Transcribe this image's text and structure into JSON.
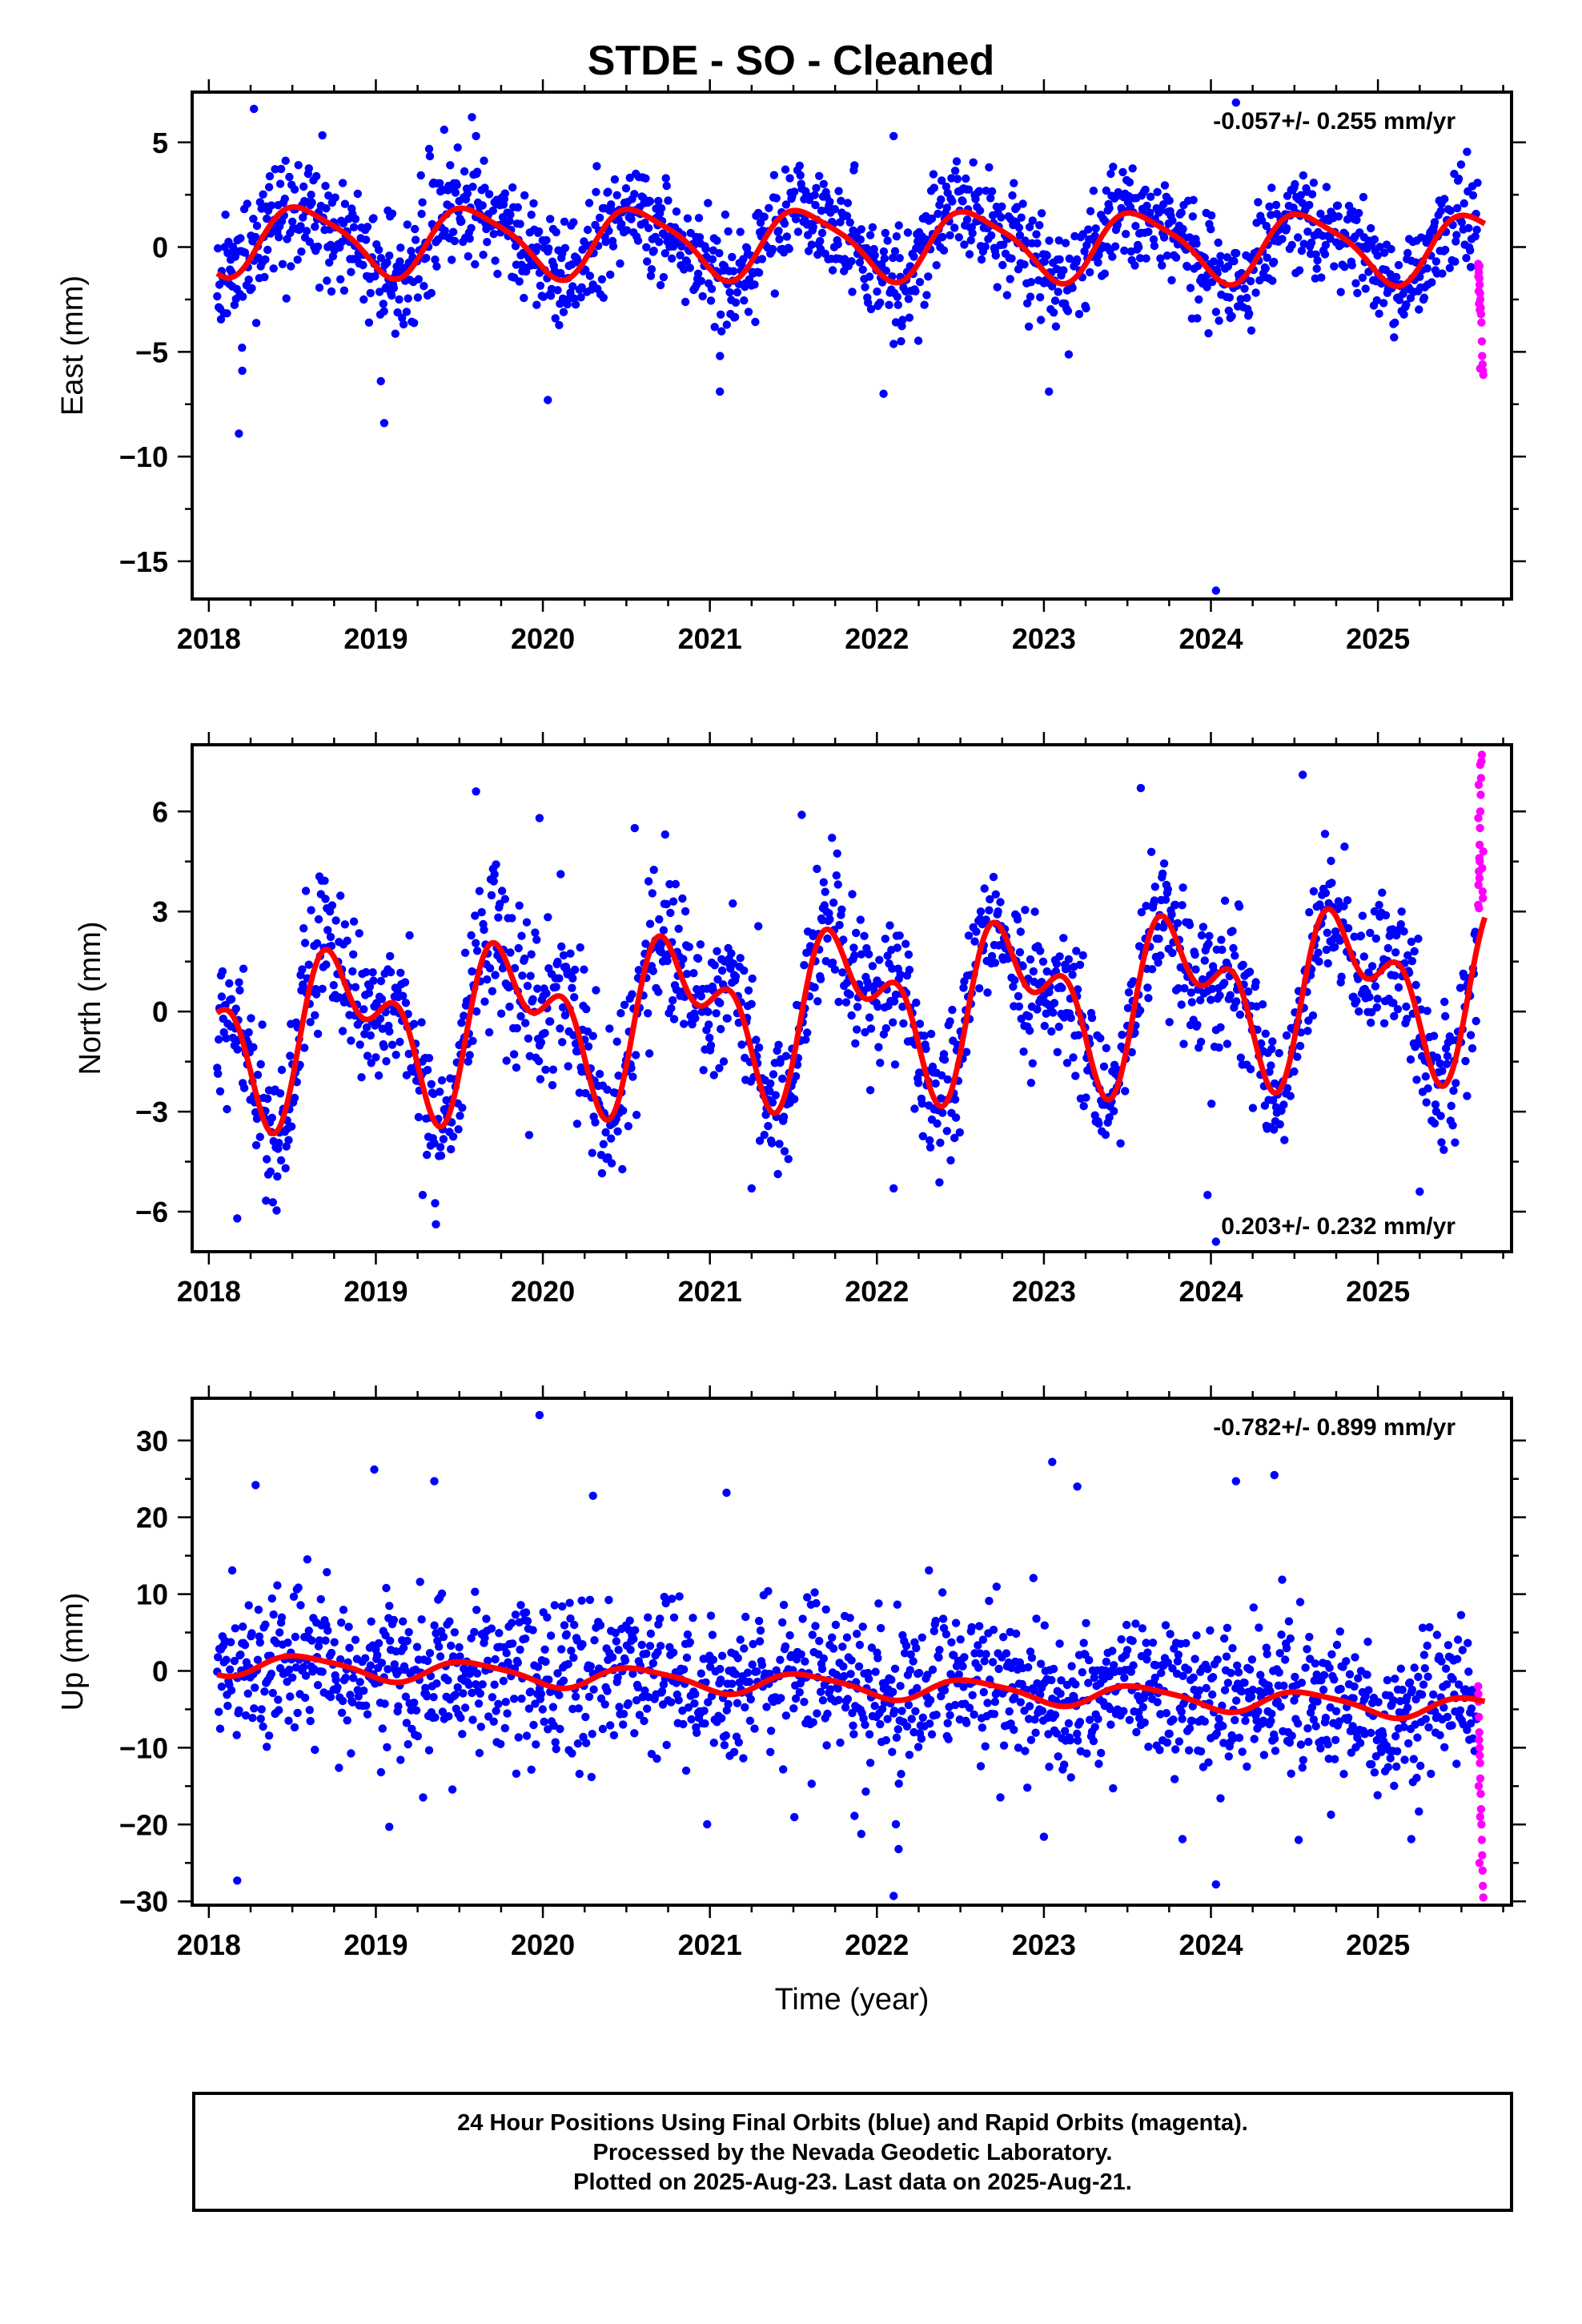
{
  "title": "STDE  - SO - Cleaned",
  "colors": {
    "final": "#0000ff",
    "rapid": "#ff00ff",
    "model": "#ff0000",
    "axis": "#000000"
  },
  "chart_data": [
    {
      "type": "scatter",
      "ylabel": "East (mm)",
      "xlabel": "",
      "rate_text": "-0.057+/- 0.255 mm/yr",
      "rate_position": "top-right",
      "xlim": [
        2017.9,
        2025.8
      ],
      "ylim": [
        -16.8,
        7.4
      ],
      "xticks": [
        2018,
        2019,
        2020,
        2021,
        2022,
        2023,
        2024,
        2025
      ],
      "yticks": [
        5,
        0,
        -5,
        -10,
        -15
      ],
      "series": [
        {
          "kind": "final",
          "start": 2018.05,
          "end": 2025.6,
          "step": 0.0045,
          "trend": -0.057,
          "offset": 0.4,
          "annual": 1.6,
          "semi": 0.35,
          "phase": 0.33,
          "noise": 1.25,
          "seed": 11
        },
        {
          "kind": "rapid",
          "start": 2025.6,
          "end": 2025.645,
          "step": 0.0022,
          "values": [
            -0.8,
            -1.0,
            -1.2,
            -1.5,
            -1.8,
            -2.2,
            -2.5,
            -2.9,
            -3.2,
            -3.6,
            -4.5,
            -5.2,
            -5.6,
            -5.9,
            -6.1,
            -1.4,
            -2.1,
            -2.7,
            -0.9,
            -3.0,
            -5.8
          ]
        },
        {
          "kind": "model",
          "start": 2018.05,
          "end": 2025.64,
          "step": 0.01,
          "trend": -0.057,
          "offset": 0.4,
          "annual": 1.6,
          "semi": 0.35,
          "phase": 0.33
        }
      ],
      "outliers": [
        [
          2018.18,
          -8.9
        ],
        [
          2018.2,
          -5.9
        ],
        [
          2019.03,
          -6.4
        ],
        [
          2019.05,
          -8.4
        ],
        [
          2020.03,
          -7.3
        ],
        [
          2024.03,
          -16.4
        ],
        [
          2018.27,
          6.6
        ],
        [
          2024.15,
          6.9
        ],
        [
          2022.1,
          5.3
        ],
        [
          2019.6,
          5.3
        ],
        [
          2021.06,
          -6.9
        ],
        [
          2022.04,
          -7.0
        ],
        [
          2023.03,
          -6.9
        ]
      ]
    },
    {
      "type": "scatter",
      "ylabel": "North (mm)",
      "xlabel": "",
      "rate_text": "0.203+/- 0.232 mm/yr",
      "rate_position": "bottom-right",
      "xlim": [
        2017.9,
        2025.8
      ],
      "ylim": [
        -7.2,
        8.0
      ],
      "xticks": [
        2018,
        2019,
        2020,
        2021,
        2022,
        2023,
        2024,
        2025
      ],
      "yticks": [
        6,
        3,
        0,
        -3,
        -6
      ],
      "series": [
        {
          "kind": "final",
          "start": 2018.05,
          "end": 2025.6,
          "step": 0.0045,
          "trend": 0.203,
          "offset": -0.7,
          "annual": 1.9,
          "semi": 1.3,
          "phase": 0.58,
          "noise": 1.05,
          "seed": 23
        },
        {
          "kind": "rapid",
          "start": 2025.6,
          "end": 2025.645,
          "step": 0.0022,
          "values": [
            3.2,
            3.8,
            4.2,
            4.6,
            5.0,
            5.5,
            6.0,
            6.5,
            7.0,
            7.5,
            7.7,
            4.3,
            3.6,
            3.4,
            4.8,
            5.8,
            6.8,
            3.1,
            4.0,
            4.5,
            7.4
          ]
        },
        {
          "kind": "model",
          "start": 2018.05,
          "end": 2025.64,
          "step": 0.01,
          "trend": 0.203,
          "offset": -0.7,
          "annual": 1.9,
          "semi": 1.3,
          "phase": 0.58
        }
      ],
      "outliers": [
        [
          2018.17,
          -6.2
        ],
        [
          2019.6,
          6.6
        ],
        [
          2019.98,
          5.8
        ],
        [
          2020.55,
          5.5
        ],
        [
          2021.55,
          5.9
        ],
        [
          2023.58,
          6.7
        ],
        [
          2024.55,
          7.1
        ],
        [
          2024.03,
          -6.9
        ],
        [
          2023.98,
          -5.5
        ],
        [
          2021.25,
          -5.3
        ],
        [
          2022.1,
          -5.3
        ],
        [
          2019.28,
          -5.5
        ],
        [
          2025.25,
          -5.4
        ]
      ]
    },
    {
      "type": "scatter",
      "ylabel": "Up (mm)",
      "xlabel": "Time (year)",
      "rate_text": "-0.782+/- 0.899 mm/yr",
      "rate_position": "top-right",
      "xlim": [
        2017.9,
        2025.8
      ],
      "ylim": [
        -30.5,
        35.5
      ],
      "xticks": [
        2018,
        2019,
        2020,
        2021,
        2022,
        2023,
        2024,
        2025
      ],
      "yticks": [
        30,
        20,
        10,
        0,
        -10,
        -20,
        -30
      ],
      "series": [
        {
          "kind": "final",
          "start": 2018.05,
          "end": 2025.6,
          "step": 0.0045,
          "trend": -0.782,
          "offset": 1.0,
          "annual": 1.4,
          "semi": 0.3,
          "phase": 0.33,
          "noise": 5.0,
          "seed": 37
        },
        {
          "kind": "rapid",
          "start": 2025.6,
          "end": 2025.645,
          "step": 0.0022,
          "values": [
            -2,
            -4,
            -6,
            -8,
            -10,
            -12,
            -14,
            -16,
            -18,
            -20,
            -22,
            -24,
            -26,
            -28,
            -29.5,
            -3,
            -15,
            -9,
            -25,
            -11,
            -19
          ]
        },
        {
          "kind": "model",
          "start": 2018.05,
          "end": 2025.64,
          "step": 0.01,
          "trend": -0.782,
          "offset": 1.0,
          "annual": 1.4,
          "semi": 0.3,
          "phase": 0.33
        }
      ],
      "outliers": [
        [
          2018.17,
          -27.3
        ],
        [
          2019.98,
          33.3
        ],
        [
          2022.1,
          -29.3
        ],
        [
          2022.13,
          -23.2
        ],
        [
          2024.03,
          -27.8
        ],
        [
          2023.05,
          27.2
        ],
        [
          2023.2,
          24.0
        ],
        [
          2024.15,
          24.7
        ],
        [
          2024.38,
          25.5
        ],
        [
          2019.35,
          24.7
        ],
        [
          2021.1,
          23.2
        ],
        [
          2020.3,
          22.8
        ],
        [
          2018.28,
          24.2
        ],
        [
          2019.08,
          -20.3
        ],
        [
          2023.0,
          -21.6
        ],
        [
          2023.83,
          -21.9
        ],
        [
          2025.2,
          -21.9
        ]
      ]
    }
  ],
  "footer": {
    "line1": "24 Hour Positions Using Final Orbits (blue) and Rapid Orbits (magenta).",
    "line2": "Processed by the Nevada Geodetic Laboratory.",
    "line3": "Plotted on 2025-Aug-23. Last data on 2025-Aug-21."
  }
}
